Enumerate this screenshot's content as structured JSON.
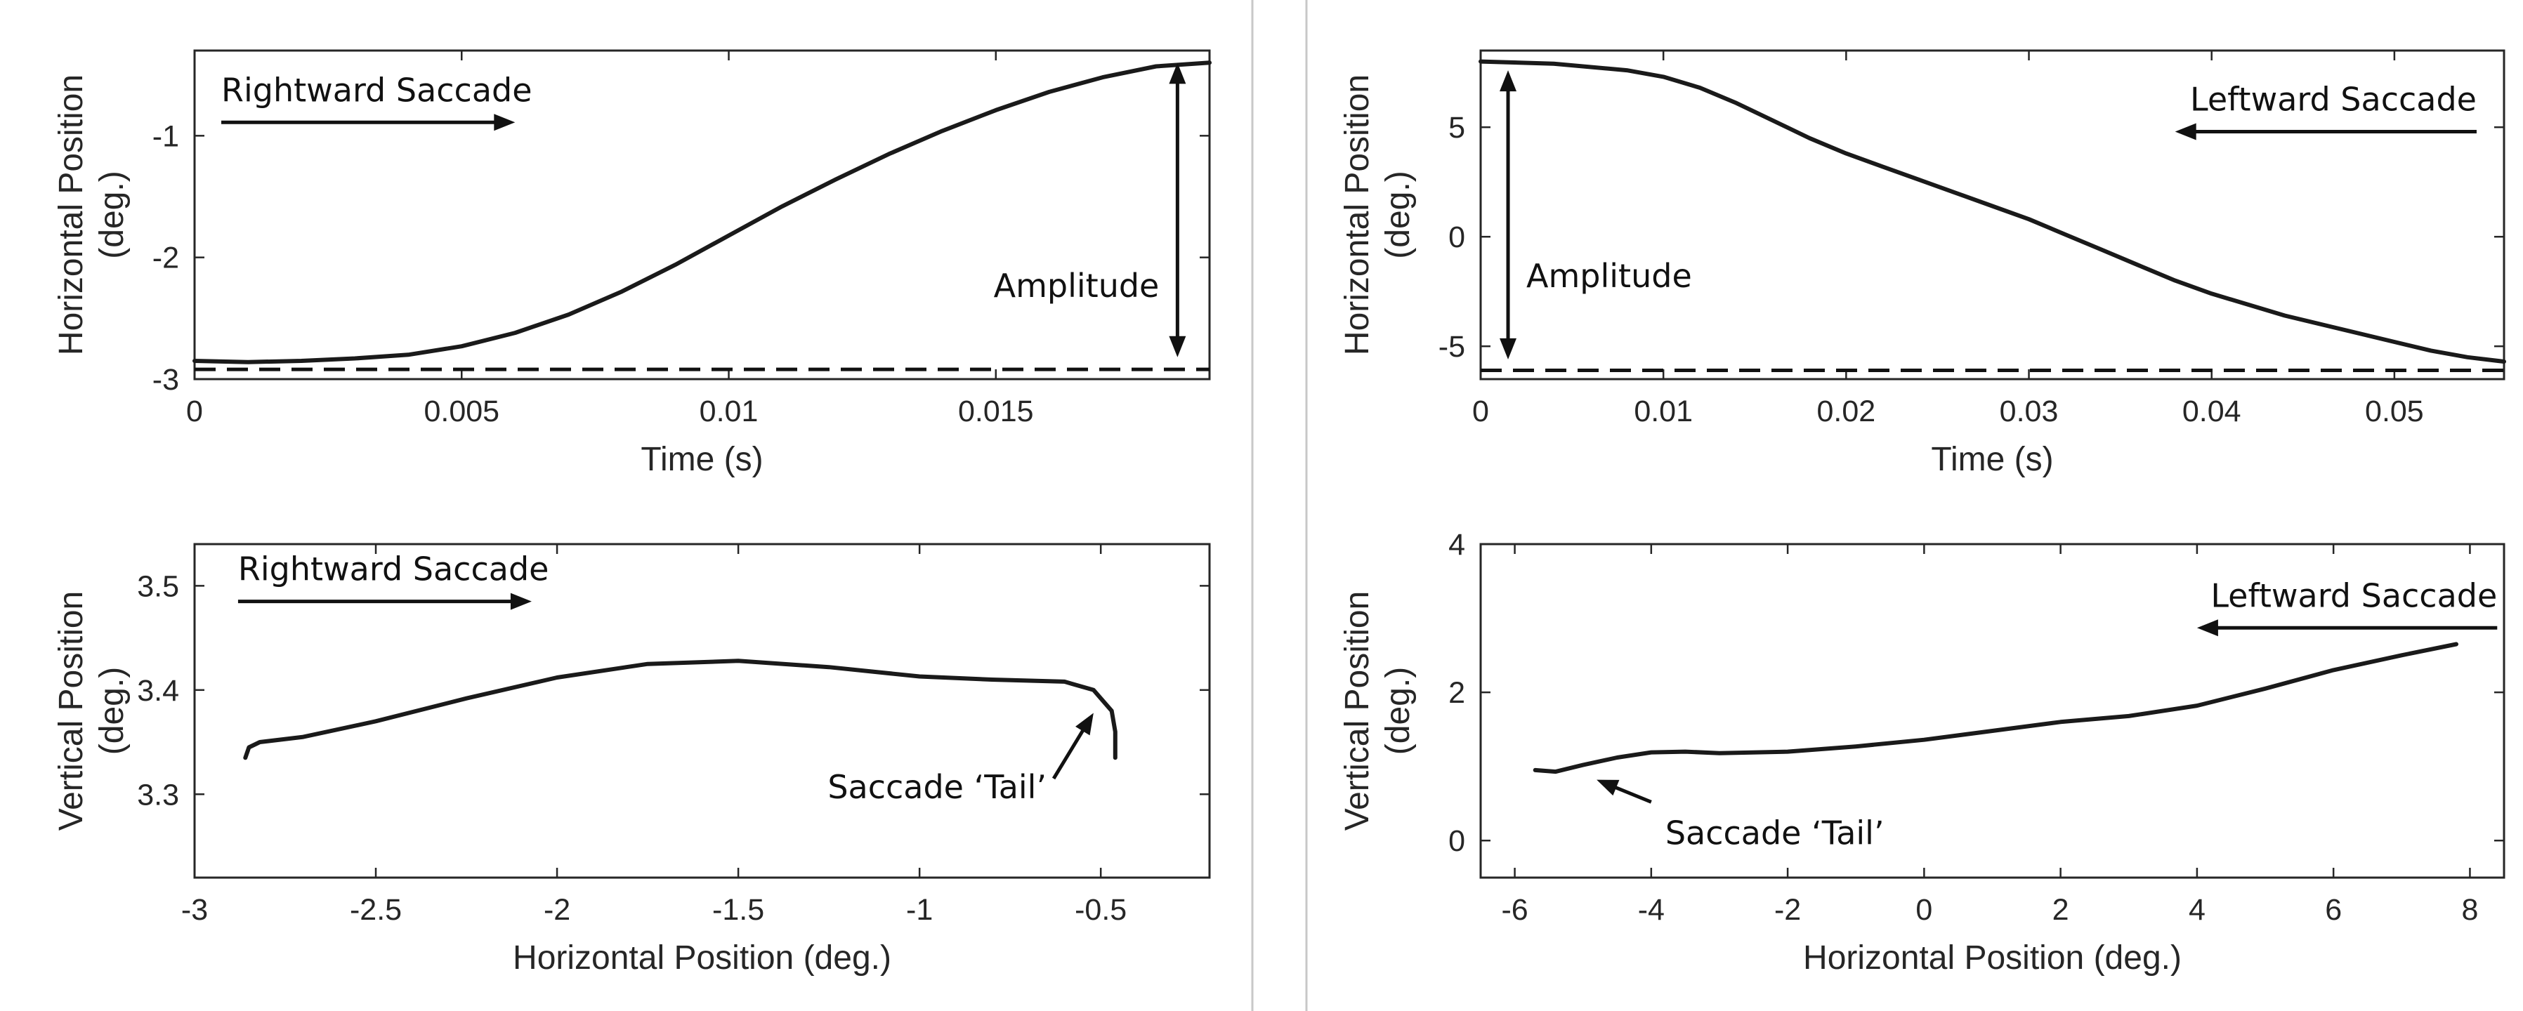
{
  "chart_data": [
    {
      "id": "top-left",
      "type": "line",
      "title": "",
      "xlabel": "Time (s)",
      "ylabel": [
        "Horizontal Position",
        "(deg.)"
      ],
      "xlim": [
        0,
        0.019
      ],
      "ylim": [
        -3,
        -0.3
      ],
      "xticks": [
        0,
        0.005,
        0.01,
        0.015
      ],
      "xtick_labels": [
        "0",
        "0.005",
        "0.01",
        "0.015"
      ],
      "yticks": [
        -3,
        -2,
        -1
      ],
      "ytick_labels": [
        "-3",
        "-2",
        "-1"
      ],
      "series": [
        {
          "name": "Horizontal position",
          "x": [
            0,
            0.001,
            0.002,
            0.003,
            0.004,
            0.005,
            0.006,
            0.007,
            0.008,
            0.009,
            0.01,
            0.011,
            0.012,
            0.013,
            0.014,
            0.015,
            0.016,
            0.017,
            0.018,
            0.019
          ],
          "y": [
            -2.85,
            -2.86,
            -2.85,
            -2.83,
            -2.8,
            -2.73,
            -2.62,
            -2.47,
            -2.28,
            -2.06,
            -1.82,
            -1.58,
            -1.36,
            -1.15,
            -0.96,
            -0.79,
            -0.64,
            -0.52,
            -0.43,
            -0.4
          ]
        }
      ],
      "baseline_y": -2.92,
      "annotations": {
        "direction_label": "Rightward Saccade",
        "direction_arrow": {
          "x_from": 0.0005,
          "x_to": 0.006,
          "y": -0.89
        },
        "amplitude_label": "Amplitude",
        "amplitude_arrow": {
          "x": 0.0184,
          "y_from": -0.4,
          "y_to": -2.82
        }
      }
    },
    {
      "id": "top-right",
      "type": "line",
      "title": "",
      "xlabel": "Time (s)",
      "ylabel": [
        "Horizontal Position",
        "(deg.)"
      ],
      "xlim": [
        0,
        0.056
      ],
      "ylim": [
        -6.5,
        8.5
      ],
      "xticks": [
        0,
        0.01,
        0.02,
        0.03,
        0.04,
        0.05
      ],
      "xtick_labels": [
        "0",
        "0.01",
        "0.02",
        "0.03",
        "0.04",
        "0.05"
      ],
      "yticks": [
        -5,
        0,
        5
      ],
      "ytick_labels": [
        "-5",
        "0",
        "5"
      ],
      "series": [
        {
          "name": "Horizontal position",
          "x": [
            0,
            0.004,
            0.008,
            0.01,
            0.012,
            0.014,
            0.016,
            0.018,
            0.02,
            0.022,
            0.024,
            0.026,
            0.028,
            0.03,
            0.032,
            0.034,
            0.036,
            0.038,
            0.04,
            0.042,
            0.044,
            0.046,
            0.048,
            0.05,
            0.052,
            0.054,
            0.056
          ],
          "y": [
            8.0,
            7.9,
            7.6,
            7.3,
            6.8,
            6.1,
            5.3,
            4.5,
            3.8,
            3.2,
            2.6,
            2.0,
            1.4,
            0.8,
            0.1,
            -0.6,
            -1.3,
            -2.0,
            -2.6,
            -3.1,
            -3.6,
            -4.0,
            -4.4,
            -4.8,
            -5.2,
            -5.5,
            -5.7
          ]
        }
      ],
      "baseline_y": -6.1,
      "annotations": {
        "direction_label": "Leftward Saccade",
        "direction_arrow": {
          "x_from": 0.0545,
          "x_to": 0.038,
          "y": 4.8
        },
        "amplitude_label": "Amplitude",
        "amplitude_arrow": {
          "x": 0.0015,
          "y_from": 7.6,
          "y_to": -5.6
        }
      }
    },
    {
      "id": "bottom-left",
      "type": "line",
      "title": "",
      "xlabel": "Horizontal Position (deg.)",
      "ylabel": [
        "Vertical Position",
        "(deg.)"
      ],
      "xlim": [
        -3,
        -0.2
      ],
      "ylim": [
        3.22,
        3.54
      ],
      "xticks": [
        -3,
        -2.5,
        -2,
        -1.5,
        -1,
        -0.5
      ],
      "xtick_labels": [
        "-3",
        "-2.5",
        "-2",
        "-1.5",
        "-1",
        "-0.5"
      ],
      "yticks": [
        3.3,
        3.4,
        3.5
      ],
      "ytick_labels": [
        "3.3",
        "3.4",
        "3.5"
      ],
      "series": [
        {
          "name": "Saccade trajectory",
          "x": [
            -2.86,
            -2.85,
            -2.82,
            -2.7,
            -2.5,
            -2.25,
            -2.0,
            -1.75,
            -1.5,
            -1.25,
            -1.0,
            -0.8,
            -0.6,
            -0.52,
            -0.47,
            -0.46,
            -0.46
          ],
          "y": [
            3.335,
            3.345,
            3.35,
            3.355,
            3.37,
            3.392,
            3.412,
            3.425,
            3.428,
            3.422,
            3.413,
            3.41,
            3.408,
            3.4,
            3.38,
            3.36,
            3.335
          ]
        }
      ],
      "annotations": {
        "direction_label": "Rightward Saccade",
        "direction_arrow": {
          "x_from": -2.88,
          "x_to": -2.07,
          "y": 3.485
        },
        "tail_label": "Saccade ‘Tail’",
        "tail_arrow": {
          "x_from": -0.63,
          "y_from": 3.315,
          "x_to": -0.52,
          "y_to": 3.378
        }
      }
    },
    {
      "id": "bottom-right",
      "type": "line",
      "title": "",
      "xlabel": "Horizontal Position (deg.)",
      "ylabel": [
        "Vertical Position",
        "(deg.)"
      ],
      "xlim": [
        -6.5,
        8.5
      ],
      "ylim": [
        -0.5,
        4
      ],
      "xticks": [
        -6,
        -4,
        -2,
        0,
        2,
        4,
        6,
        8
      ],
      "xtick_labels": [
        "-6",
        "-4",
        "-2",
        "0",
        "2",
        "4",
        "6",
        "8"
      ],
      "yticks": [
        0,
        2,
        4
      ],
      "ytick_labels": [
        "0",
        "2",
        "4"
      ],
      "series": [
        {
          "name": "Saccade trajectory",
          "x": [
            -5.7,
            -5.4,
            -5.0,
            -4.5,
            -4.0,
            -3.5,
            -3.0,
            -2.0,
            -1.0,
            0.0,
            1.0,
            2.0,
            3.0,
            4.0,
            5.0,
            6.0,
            7.0,
            7.8
          ],
          "y": [
            0.95,
            0.93,
            1.02,
            1.12,
            1.19,
            1.2,
            1.18,
            1.2,
            1.27,
            1.36,
            1.48,
            1.6,
            1.68,
            1.82,
            2.05,
            2.3,
            2.5,
            2.65
          ]
        }
      ],
      "annotations": {
        "direction_label": "Leftward Saccade",
        "direction_arrow": {
          "x_from": 8.4,
          "x_to": 4.0,
          "y": 2.87
        },
        "tail_label": "Saccade ‘Tail’",
        "tail_arrow": {
          "x_from": -4.0,
          "y_from": 0.52,
          "x_to": -4.8,
          "y_to": 0.82
        }
      }
    }
  ]
}
